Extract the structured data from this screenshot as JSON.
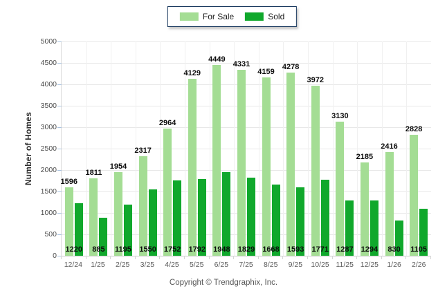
{
  "legend": {
    "for_sale_label": "For Sale",
    "sold_label": "Sold"
  },
  "y_axis": {
    "title": "Number of Homes",
    "min": 0,
    "max": 5000,
    "step": 500
  },
  "footer": {
    "copyright": "Copyright © Trendgraphix, Inc."
  },
  "colors": {
    "for_sale": "#a4dd94",
    "sold": "#10a82c",
    "gridline": "#e8e8e8",
    "legend_border": "#16365c"
  },
  "chart_data": {
    "type": "bar",
    "title": "",
    "xlabel": "",
    "ylabel": "Number of Homes",
    "ylim": [
      0,
      5000
    ],
    "ystep": 500,
    "grid": true,
    "legend_position": "top-center",
    "categories": [
      "12/24",
      "1/25",
      "2/25",
      "3/25",
      "4/25",
      "5/25",
      "6/25",
      "7/25",
      "8/25",
      "9/25",
      "10/25",
      "11/25",
      "12/25",
      "1/26",
      "2/26"
    ],
    "series": [
      {
        "name": "For Sale",
        "color": "#a4dd94",
        "values": [
          1596,
          1811,
          1954,
          2317,
          2964,
          4129,
          4449,
          4331,
          4159,
          4278,
          3972,
          3130,
          2185,
          2416,
          2828
        ]
      },
      {
        "name": "Sold",
        "color": "#10a82c",
        "values": [
          1220,
          885,
          1195,
          1550,
          1752,
          1792,
          1948,
          1829,
          1668,
          1593,
          1771,
          1287,
          1294,
          830,
          1105
        ]
      }
    ]
  }
}
